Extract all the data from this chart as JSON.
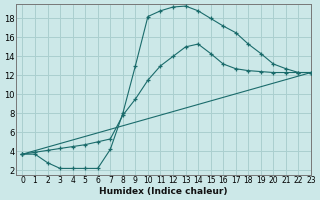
{
  "xlabel": "Humidex (Indice chaleur)",
  "bg_color": "#cce8e8",
  "grid_color": "#aacfcf",
  "line_color": "#1a6b6b",
  "line1_x": [
    0,
    1,
    2,
    3,
    4,
    5,
    6,
    7,
    8,
    9,
    10,
    11,
    12,
    13,
    14,
    15,
    16,
    17,
    18,
    19,
    20,
    21,
    22,
    23
  ],
  "line1_y": [
    3.7,
    3.7,
    2.8,
    2.2,
    2.2,
    2.2,
    2.2,
    4.2,
    8.0,
    13.0,
    18.2,
    18.8,
    19.2,
    19.3,
    18.8,
    18.0,
    17.2,
    16.5,
    15.3,
    14.3,
    13.2,
    12.7,
    12.3,
    12.3
  ],
  "line2_x": [
    0,
    1,
    2,
    3,
    4,
    5,
    6,
    7,
    8,
    9,
    10,
    11,
    12,
    13,
    14,
    15,
    16,
    17,
    18,
    19,
    20,
    21,
    22,
    23
  ],
  "line2_y": [
    3.7,
    3.9,
    4.1,
    4.3,
    4.5,
    4.7,
    5.0,
    5.3,
    7.8,
    9.5,
    11.5,
    13.0,
    14.0,
    15.0,
    15.3,
    14.3,
    13.2,
    12.7,
    12.5,
    12.4,
    12.3,
    12.3,
    12.3,
    12.3
  ],
  "line3_x": [
    0,
    23
  ],
  "line3_y": [
    3.7,
    12.3
  ],
  "xlim": [
    -0.5,
    23
  ],
  "ylim": [
    1.5,
    19.5
  ],
  "yticks": [
    2,
    4,
    6,
    8,
    10,
    12,
    14,
    16,
    18
  ],
  "xticks": [
    0,
    1,
    2,
    3,
    4,
    5,
    6,
    7,
    8,
    9,
    10,
    11,
    12,
    13,
    14,
    15,
    16,
    17,
    18,
    19,
    20,
    21,
    22,
    23
  ],
  "xlabel_fontsize": 6.5,
  "tick_fontsize": 5.5,
  "lw": 0.8,
  "ms": 3.0
}
